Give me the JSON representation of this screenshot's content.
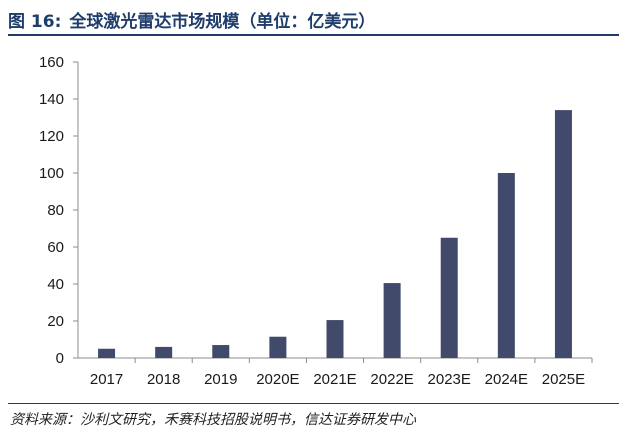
{
  "header": {
    "figure_label": "图 16:",
    "title": "全球激光雷达市场规模（单位：亿美元）"
  },
  "source": "资料来源：沙利文研究，禾赛科技招股说明书，信达证券研发中心",
  "colors": {
    "bar": "#414a6b",
    "axis": "#8c8c8c",
    "accent": "#1f3d6b"
  },
  "chart_data": {
    "type": "bar",
    "title": "全球激光雷达市场规模（单位：亿美元）",
    "xlabel": "",
    "ylabel": "",
    "categories": [
      "2017",
      "2018",
      "2019",
      "2020E",
      "2021E",
      "2022E",
      "2023E",
      "2024E",
      "2025E"
    ],
    "values": [
      5,
      6,
      7,
      11.5,
      20.5,
      40.5,
      65,
      100,
      134
    ],
    "ylim": [
      0,
      160
    ],
    "yticks": [
      0,
      20,
      40,
      60,
      80,
      100,
      120,
      140,
      160
    ],
    "grid": false,
    "legend": "none"
  }
}
